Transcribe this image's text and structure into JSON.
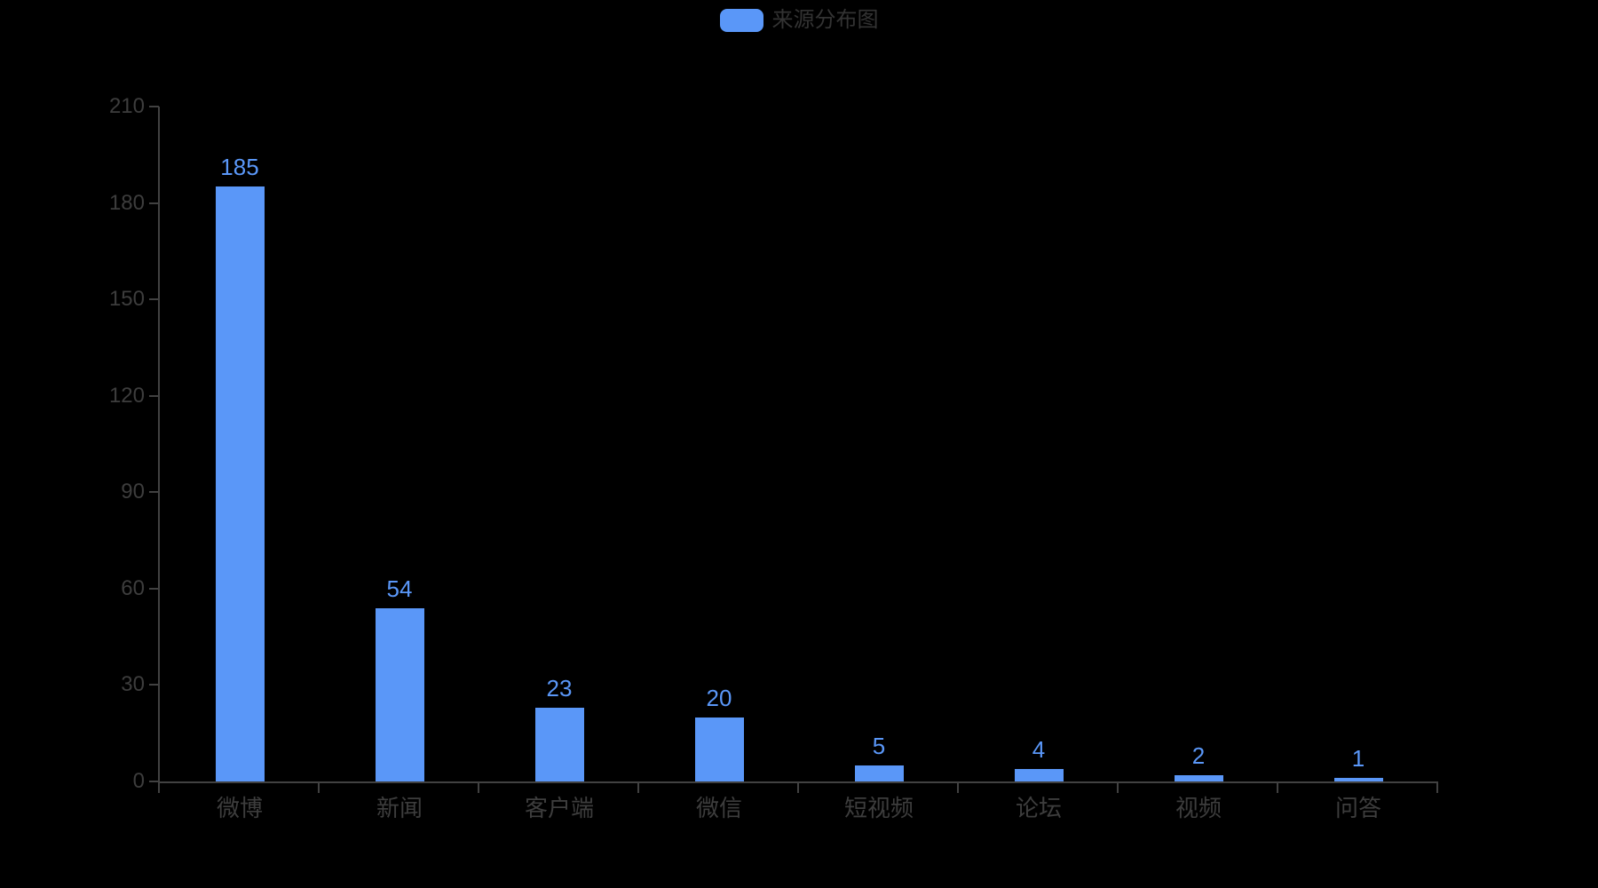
{
  "legend": {
    "label": "来源分布图"
  },
  "chart_data": {
    "type": "bar",
    "title": "来源分布图",
    "categories": [
      "微博",
      "新闻",
      "客户端",
      "微信",
      "短视频",
      "论坛",
      "视频",
      "问答"
    ],
    "values": [
      185,
      54,
      23,
      20,
      5,
      4,
      2,
      1
    ],
    "xlabel": "",
    "ylabel": "",
    "ylim": [
      0,
      210
    ],
    "y_ticks": [
      0,
      30,
      60,
      90,
      120,
      150,
      180,
      210
    ],
    "grid": false,
    "legend_position": "top-center",
    "value_labels_shown": true,
    "colors": {
      "background": "#000000",
      "bar": "#5A97F8",
      "value_label": "#5A97F8",
      "legend_text": "#333333",
      "axis_line": "#414141",
      "axis_text": "#3D3D3D"
    }
  }
}
